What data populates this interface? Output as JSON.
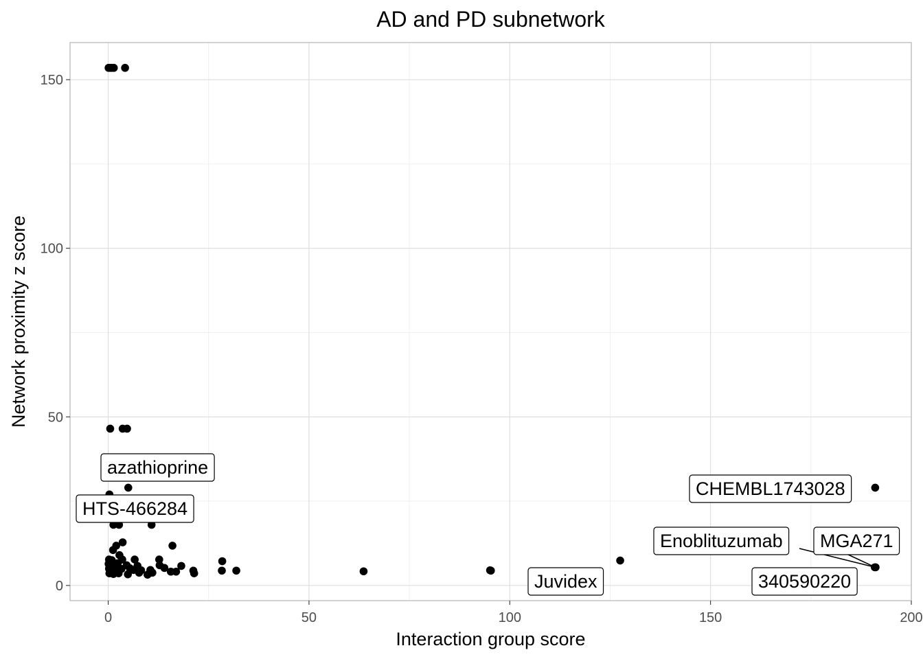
{
  "chart_data": {
    "type": "scatter",
    "title": "AD and PD subnetwork",
    "xlabel": "Interaction group score",
    "ylabel": "Network proximity z score",
    "xlim": [
      -9.5,
      200
    ],
    "ylim": [
      -4.5,
      161
    ],
    "xticks": [
      0,
      50,
      100,
      150,
      200
    ],
    "yticks": [
      0,
      50,
      100,
      150
    ],
    "xtick_labels": [
      "0",
      "50",
      "100",
      "150",
      "200"
    ],
    "ytick_labels": [
      "0",
      "50",
      "100",
      "150"
    ],
    "grid": true,
    "colors": {
      "point": "#000000",
      "grid": "#dcdcdc",
      "panel_border": "#b3b3b3"
    },
    "points": [
      {
        "x": 0.1,
        "y": 153.5
      },
      {
        "x": 0.5,
        "y": 153.5
      },
      {
        "x": 0.9,
        "y": 153.5
      },
      {
        "x": 1.4,
        "y": 153.5
      },
      {
        "x": 4.2,
        "y": 153.5
      },
      {
        "x": 0.5,
        "y": 46.5
      },
      {
        "x": 3.6,
        "y": 46.5
      },
      {
        "x": 4.7,
        "y": 46.5
      },
      {
        "x": 0.3,
        "y": 27.0
      },
      {
        "x": 5.0,
        "y": 29.0
      },
      {
        "x": 1.3,
        "y": 18.0
      },
      {
        "x": 2.7,
        "y": 18.0
      },
      {
        "x": 10.8,
        "y": 18.0
      },
      {
        "x": 3.6,
        "y": 12.8
      },
      {
        "x": 2.0,
        "y": 11.8
      },
      {
        "x": 1.2,
        "y": 10.5
      },
      {
        "x": 16.0,
        "y": 11.8
      },
      {
        "x": 2.8,
        "y": 9.0
      },
      {
        "x": 0.2,
        "y": 7.7
      },
      {
        "x": 0.9,
        "y": 7.5
      },
      {
        "x": 3.5,
        "y": 7.7
      },
      {
        "x": 6.6,
        "y": 7.7
      },
      {
        "x": 12.7,
        "y": 7.7
      },
      {
        "x": 28.4,
        "y": 7.2
      },
      {
        "x": 0.1,
        "y": 6.4
      },
      {
        "x": 1.5,
        "y": 6.2
      },
      {
        "x": 2.4,
        "y": 6.6
      },
      {
        "x": 4.6,
        "y": 6.0
      },
      {
        "x": 7.3,
        "y": 5.8
      },
      {
        "x": 12.8,
        "y": 6.0
      },
      {
        "x": 14.0,
        "y": 5.2
      },
      {
        "x": 18.2,
        "y": 5.8
      },
      {
        "x": 0.2,
        "y": 5.0
      },
      {
        "x": 1.0,
        "y": 4.8
      },
      {
        "x": 2.1,
        "y": 5.2
      },
      {
        "x": 3.3,
        "y": 4.9
      },
      {
        "x": 5.4,
        "y": 5.1
      },
      {
        "x": 6.3,
        "y": 4.6
      },
      {
        "x": 8.2,
        "y": 4.5
      },
      {
        "x": 10.5,
        "y": 4.6
      },
      {
        "x": 15.6,
        "y": 4.1
      },
      {
        "x": 16.9,
        "y": 4.1
      },
      {
        "x": 21.2,
        "y": 4.4
      },
      {
        "x": 28.3,
        "y": 4.4
      },
      {
        "x": 31.9,
        "y": 4.4
      },
      {
        "x": 63.6,
        "y": 4.2
      },
      {
        "x": 0.3,
        "y": 3.6
      },
      {
        "x": 1.3,
        "y": 3.4
      },
      {
        "x": 2.6,
        "y": 3.6
      },
      {
        "x": 4.9,
        "y": 3.3
      },
      {
        "x": 7.7,
        "y": 3.8
      },
      {
        "x": 9.8,
        "y": 3.2
      },
      {
        "x": 11.0,
        "y": 3.8
      },
      {
        "x": 21.4,
        "y": 3.6
      },
      {
        "x": 95.1,
        "y": 4.5
      },
      {
        "x": 95.3,
        "y": 4.4
      },
      {
        "x": 127.5,
        "y": 7.4
      },
      {
        "x": 191.0,
        "y": 29.0
      },
      {
        "x": 190.9,
        "y": 5.4
      },
      {
        "x": 191.1,
        "y": 5.4
      }
    ],
    "labels": [
      {
        "text": "azathioprine"
      },
      {
        "text": "HTS-466284"
      },
      {
        "text": "CHEMBL1743028"
      },
      {
        "text": "Enoblituzumab"
      },
      {
        "text": "MGA271"
      },
      {
        "text": "Juvidex"
      },
      {
        "text": "340590220"
      }
    ]
  }
}
